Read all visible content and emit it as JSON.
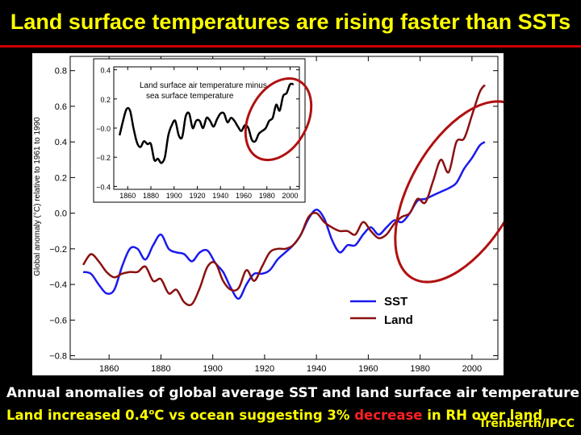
{
  "slide": {
    "title": "Land surface temperatures are rising faster than SSTs",
    "caption_line1": "Annual anomalies of global average SST and land surface air temperature",
    "caption_line2_a": "Land increased 0.4",
    "caption_line2_sup": "o",
    "caption_line2_b": "C vs ocean suggesting 3% ",
    "caption_line2_red": "decrease",
    "caption_line2_c": " in RH over land",
    "credit": "Trenberth/IPCC",
    "colors": {
      "title": "#ffff00",
      "rule": "#cc0000",
      "highlight": "#ff2020",
      "circle": "#b01010"
    }
  },
  "chart_data": [
    {
      "type": "line",
      "ylabel": "Global anomaly (°C) relative to 1961 to 1990",
      "xlabel": "",
      "xlim": [
        1845,
        2010
      ],
      "ylim": [
        -0.82,
        0.88
      ],
      "xticks": [
        1860,
        1880,
        1900,
        1920,
        1940,
        1960,
        1980,
        2000
      ],
      "yticks": [
        -0.8,
        -0.6,
        -0.4,
        -0.2,
        0.0,
        0.2,
        0.4,
        0.6,
        0.8
      ],
      "ytick_labels": [
        "−0.8",
        "−0.6",
        "−0.4",
        "−0.2",
        "0.0",
        "0.2",
        "0.4",
        "0.6",
        "0.8"
      ],
      "legend_position": "bottom-right",
      "series": [
        {
          "name": "SST",
          "color": "#1a1aee",
          "x": [
            1850,
            1853,
            1856,
            1859,
            1862,
            1865,
            1868,
            1871,
            1874,
            1877,
            1880,
            1883,
            1886,
            1889,
            1892,
            1895,
            1898,
            1901,
            1904,
            1907,
            1910,
            1913,
            1916,
            1919,
            1922,
            1925,
            1928,
            1931,
            1934,
            1937,
            1940,
            1943,
            1946,
            1949,
            1952,
            1955,
            1958,
            1961,
            1964,
            1967,
            1970,
            1973,
            1976,
            1979,
            1982,
            1985,
            1988,
            1991,
            1994,
            1997,
            2000,
            2003,
            2005
          ],
          "values": [
            -0.33,
            -0.34,
            -0.4,
            -0.45,
            -0.43,
            -0.3,
            -0.2,
            -0.2,
            -0.26,
            -0.18,
            -0.12,
            -0.2,
            -0.22,
            -0.23,
            -0.27,
            -0.22,
            -0.21,
            -0.28,
            -0.33,
            -0.42,
            -0.48,
            -0.4,
            -0.34,
            -0.34,
            -0.32,
            -0.26,
            -0.22,
            -0.18,
            -0.12,
            -0.03,
            0.02,
            -0.03,
            -0.15,
            -0.22,
            -0.18,
            -0.18,
            -0.12,
            -0.08,
            -0.12,
            -0.08,
            -0.04,
            -0.05,
            0.0,
            0.07,
            0.08,
            0.1,
            0.12,
            0.14,
            0.17,
            0.25,
            0.31,
            0.38,
            0.4
          ]
        },
        {
          "name": "Land",
          "color": "#8b1010",
          "x": [
            1850,
            1853,
            1856,
            1859,
            1862,
            1865,
            1868,
            1871,
            1874,
            1877,
            1880,
            1883,
            1886,
            1889,
            1892,
            1895,
            1898,
            1901,
            1904,
            1907,
            1910,
            1913,
            1916,
            1919,
            1922,
            1925,
            1928,
            1931,
            1934,
            1937,
            1940,
            1943,
            1946,
            1949,
            1952,
            1955,
            1958,
            1961,
            1964,
            1967,
            1970,
            1973,
            1976,
            1979,
            1982,
            1985,
            1988,
            1991,
            1994,
            1997,
            2000,
            2003,
            2005
          ],
          "values": [
            -0.29,
            -0.23,
            -0.27,
            -0.33,
            -0.36,
            -0.34,
            -0.33,
            -0.33,
            -0.3,
            -0.38,
            -0.37,
            -0.45,
            -0.43,
            -0.5,
            -0.51,
            -0.42,
            -0.3,
            -0.28,
            -0.38,
            -0.43,
            -0.42,
            -0.32,
            -0.38,
            -0.3,
            -0.22,
            -0.2,
            -0.2,
            -0.18,
            -0.12,
            -0.02,
            0.0,
            -0.05,
            -0.08,
            -0.1,
            -0.1,
            -0.12,
            -0.05,
            -0.1,
            -0.14,
            -0.12,
            -0.06,
            -0.02,
            0.0,
            0.08,
            0.06,
            0.18,
            0.3,
            0.23,
            0.4,
            0.42,
            0.55,
            0.68,
            0.72
          ]
        }
      ]
    },
    {
      "type": "line",
      "title": "Land surface air temperature minus sea surface temperature",
      "xlabel": "",
      "ylabel": "",
      "xlim": [
        1848,
        2008
      ],
      "ylim": [
        -0.42,
        0.42
      ],
      "xticks": [
        1860,
        1880,
        1900,
        1920,
        1940,
        1960,
        1980,
        2000
      ],
      "yticks": [
        -0.4,
        -0.2,
        0.0,
        0.2,
        0.4
      ],
      "ytick_labels": [
        "−0.4",
        "−0.2",
        "−0.0",
        "0.2",
        "0.4"
      ],
      "series": [
        {
          "color": "#000000",
          "x": [
            1853,
            1856,
            1859,
            1862,
            1865,
            1868,
            1871,
            1874,
            1877,
            1880,
            1883,
            1886,
            1889,
            1892,
            1895,
            1898,
            1901,
            1904,
            1907,
            1910,
            1913,
            1916,
            1919,
            1922,
            1925,
            1928,
            1931,
            1934,
            1937,
            1940,
            1943,
            1946,
            1949,
            1952,
            1955,
            1958,
            1961,
            1964,
            1967,
            1970,
            1973,
            1976,
            1979,
            1982,
            1985,
            1988,
            1991,
            1994,
            1997,
            2000,
            2003
          ],
          "values": [
            -0.05,
            0.05,
            0.13,
            0.12,
            0.0,
            -0.1,
            -0.13,
            -0.09,
            -0.11,
            -0.11,
            -0.22,
            -0.21,
            -0.24,
            -0.2,
            -0.05,
            0.02,
            0.05,
            -0.05,
            -0.06,
            0.08,
            0.1,
            0.0,
            0.05,
            0.05,
            0.0,
            0.07,
            0.05,
            0.01,
            0.06,
            0.1,
            0.1,
            0.04,
            0.07,
            0.05,
            0.01,
            -0.02,
            0.02,
            0.0,
            -0.08,
            -0.09,
            -0.04,
            -0.02,
            0.0,
            0.05,
            0.07,
            0.16,
            0.12,
            0.22,
            0.24,
            0.3,
            0.3
          ]
        }
      ]
    }
  ]
}
